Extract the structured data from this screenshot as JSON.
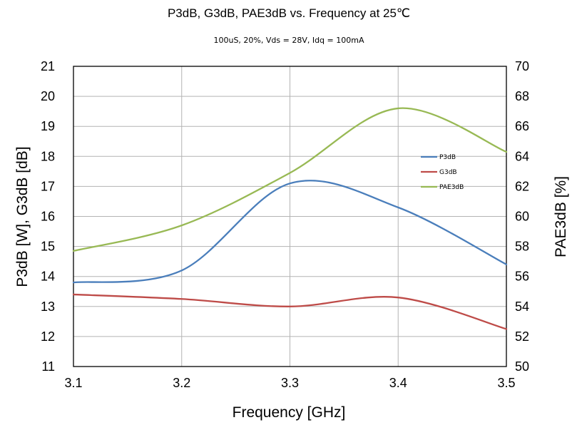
{
  "chart_data": {
    "type": "line",
    "title": "P3dB, G3dB, PAE3dB vs. Frequency at 25℃",
    "subtitle": "100uS, 20%, Vds = 28V, Idq = 100mA",
    "xlabel": "Frequency [GHz]",
    "ylabel": "P3dB [W],   G3dB [dB]",
    "y2label": "PAE3dB [%]",
    "xlim": [
      3.1,
      3.5
    ],
    "ylim": [
      11,
      21
    ],
    "y2lim": [
      50,
      70
    ],
    "x_ticks": [
      "3.1",
      "3.2",
      "3.3",
      "3.4",
      "3.5"
    ],
    "y_ticks": [
      "11",
      "12",
      "13",
      "14",
      "15",
      "16",
      "17",
      "18",
      "19",
      "20",
      "21"
    ],
    "y2_ticks": [
      "50",
      "52",
      "54",
      "56",
      "58",
      "60",
      "62",
      "64",
      "66",
      "68",
      "70"
    ],
    "grid": true,
    "legend_position": "right",
    "x": [
      3.1,
      3.2,
      3.3,
      3.4,
      3.5
    ],
    "series": [
      {
        "name": "P3dB",
        "axis": "left",
        "color": "#4a7ebb",
        "values": [
          13.8,
          14.2,
          17.1,
          16.3,
          14.4
        ]
      },
      {
        "name": "G3dB",
        "axis": "left",
        "color": "#be4b48",
        "values": [
          13.4,
          13.25,
          13.0,
          13.3,
          12.25
        ]
      },
      {
        "name": "PAE3dB",
        "axis": "right",
        "color": "#98b954",
        "values": [
          57.7,
          59.4,
          62.9,
          67.2,
          64.3
        ]
      }
    ]
  }
}
